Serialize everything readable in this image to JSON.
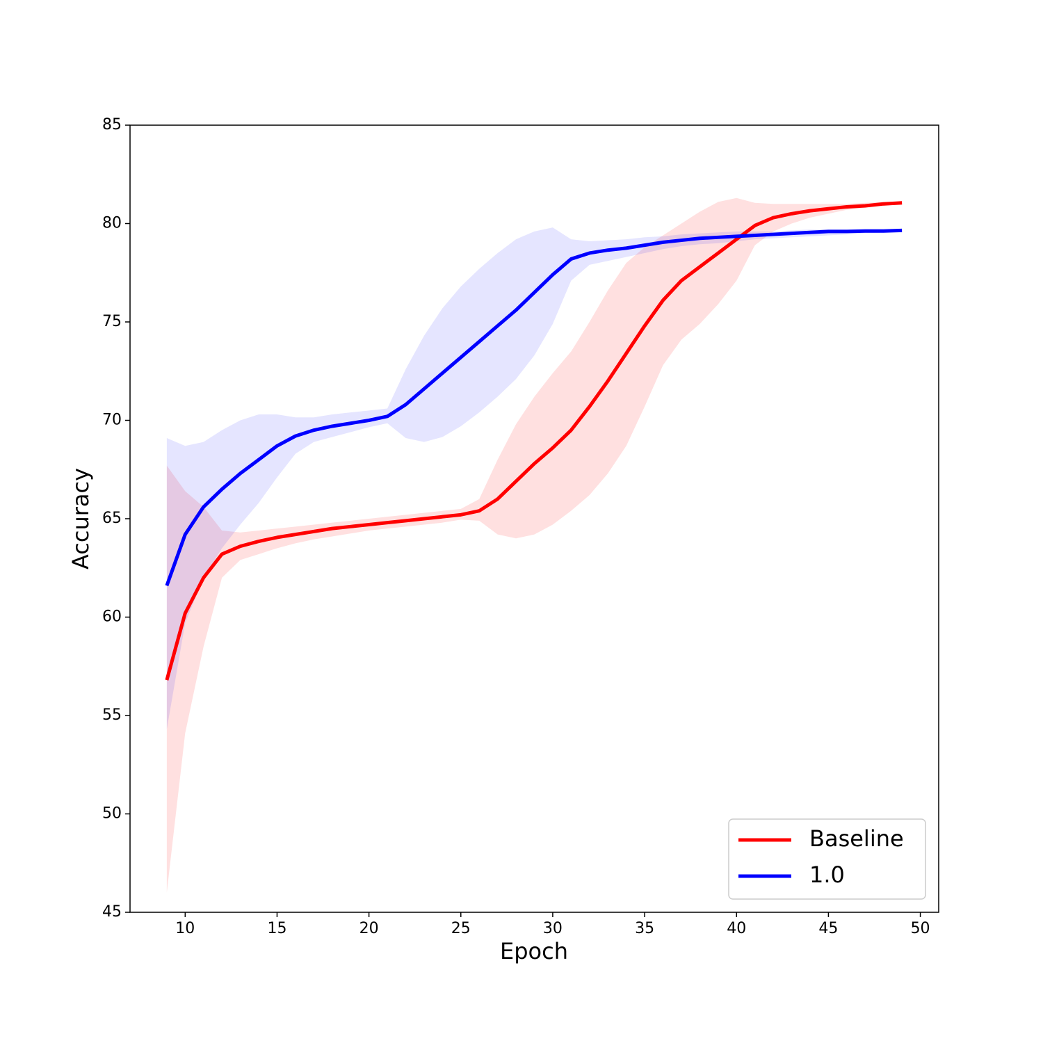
{
  "chart_data": {
    "type": "line",
    "x_label": "Epoch",
    "y_label": "Accuracy",
    "x": [
      9,
      10,
      11,
      12,
      13,
      14,
      15,
      16,
      17,
      18,
      19,
      20,
      21,
      22,
      23,
      24,
      25,
      26,
      27,
      28,
      29,
      30,
      31,
      32,
      33,
      34,
      35,
      36,
      37,
      38,
      39,
      40,
      41,
      42,
      43,
      44,
      45,
      46,
      47,
      48,
      49
    ],
    "series": [
      {
        "name": "Baseline",
        "color": "#ff0000",
        "values": [
          56.8,
          60.2,
          62.0,
          63.2,
          63.6,
          63.85,
          64.05,
          64.2,
          64.35,
          64.5,
          64.6,
          64.7,
          64.8,
          64.9,
          65.0,
          65.1,
          65.2,
          65.4,
          66.0,
          66.9,
          67.8,
          68.6,
          69.5,
          70.7,
          72.0,
          73.4,
          74.8,
          76.1,
          77.1,
          77.8,
          78.5,
          79.2,
          79.9,
          80.3,
          80.5,
          80.65,
          80.75,
          80.85,
          80.9,
          81.0,
          81.05
        ],
        "upper": [
          67.7,
          66.4,
          65.6,
          64.4,
          64.3,
          64.4,
          64.5,
          64.6,
          64.7,
          64.8,
          64.9,
          65.0,
          65.1,
          65.2,
          65.3,
          65.4,
          65.5,
          66.0,
          68.0,
          69.8,
          71.2,
          72.4,
          73.5,
          75.0,
          76.6,
          78.0,
          78.8,
          79.4,
          80.0,
          80.6,
          81.1,
          81.3,
          81.05,
          81.0,
          81.0,
          81.0,
          81.0,
          81.0,
          81.05,
          81.1,
          81.1
        ],
        "lower": [
          46.0,
          54.1,
          58.5,
          62.0,
          62.9,
          63.2,
          63.5,
          63.75,
          63.95,
          64.1,
          64.25,
          64.4,
          64.5,
          64.6,
          64.7,
          64.8,
          64.95,
          64.9,
          64.2,
          64.0,
          64.2,
          64.7,
          65.4,
          66.2,
          67.3,
          68.7,
          70.7,
          72.8,
          74.1,
          74.9,
          75.9,
          77.1,
          78.9,
          79.6,
          80.0,
          80.3,
          80.5,
          80.7,
          80.8,
          80.9,
          81.0
        ]
      },
      {
        "name": "1.0",
        "color": "#0000ff",
        "values": [
          61.6,
          64.2,
          65.6,
          66.5,
          67.3,
          68.0,
          68.7,
          69.2,
          69.5,
          69.7,
          69.85,
          70.0,
          70.2,
          70.8,
          71.6,
          72.4,
          73.2,
          74.0,
          74.8,
          75.6,
          76.5,
          77.4,
          78.2,
          78.5,
          78.65,
          78.75,
          78.9,
          79.05,
          79.15,
          79.25,
          79.3,
          79.35,
          79.4,
          79.45,
          79.5,
          79.55,
          79.6,
          79.6,
          79.62,
          79.62,
          79.65
        ],
        "upper": [
          69.1,
          68.7,
          68.9,
          69.5,
          70.0,
          70.3,
          70.3,
          70.15,
          70.15,
          70.3,
          70.4,
          70.5,
          70.6,
          72.6,
          74.3,
          75.7,
          76.8,
          77.7,
          78.5,
          79.2,
          79.6,
          79.8,
          79.2,
          79.1,
          79.15,
          79.2,
          79.3,
          79.35,
          79.45,
          79.5,
          79.55,
          79.6,
          79.6,
          79.6,
          79.65,
          79.7,
          79.7,
          79.7,
          79.7,
          79.7,
          79.75
        ],
        "lower": [
          54.3,
          59.7,
          62.0,
          63.5,
          64.7,
          65.8,
          67.1,
          68.3,
          68.9,
          69.15,
          69.4,
          69.65,
          69.85,
          69.1,
          68.9,
          69.15,
          69.7,
          70.4,
          71.2,
          72.1,
          73.3,
          74.9,
          77.1,
          77.9,
          78.1,
          78.3,
          78.5,
          78.7,
          78.85,
          78.95,
          79.0,
          79.1,
          79.2,
          79.25,
          79.3,
          79.35,
          79.4,
          79.45,
          79.5,
          79.55,
          79.55
        ]
      }
    ],
    "xlim": [
      7,
      51
    ],
    "xticks": [
      10,
      15,
      20,
      25,
      30,
      35,
      40,
      45,
      50
    ],
    "ylim": [
      45,
      85
    ],
    "yticks": [
      45,
      50,
      55,
      60,
      65,
      70,
      75,
      80,
      85
    ],
    "legend": "lower right"
  }
}
